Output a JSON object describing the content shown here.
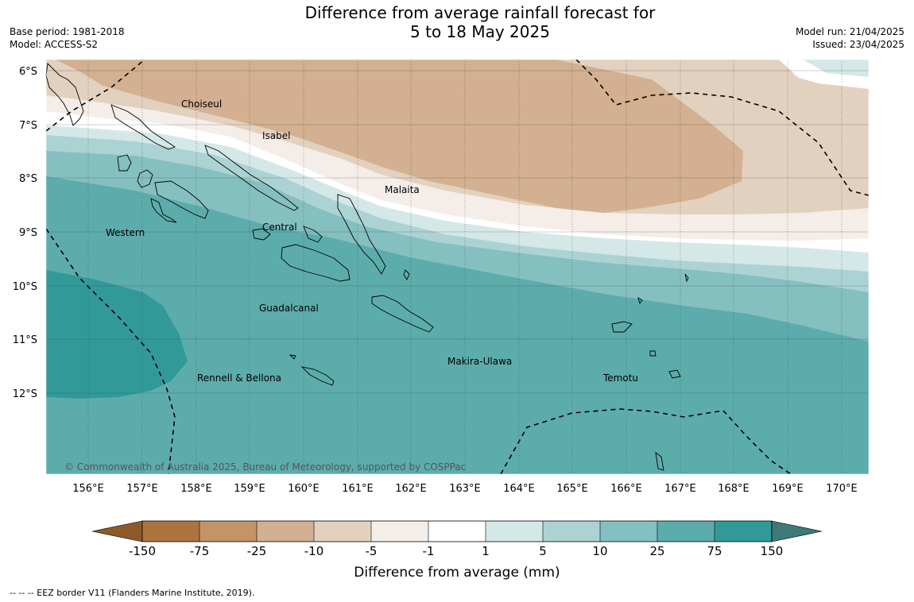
{
  "title_line1": "Difference from average rainfall forecast for",
  "title_line2": "5 to 18 May 2025",
  "base_period": "Base period: 1981-2018",
  "model": "Model: ACCESS-S2",
  "model_run": "Model run: 21/04/2025",
  "issued": "Issued: 23/04/2025",
  "lat_labels": [
    "6°S",
    "7°S",
    "8°S",
    "9°S",
    "10°S",
    "11°S",
    "12°S"
  ],
  "lon_labels": [
    "156°E",
    "157°E",
    "158°E",
    "159°E",
    "160°E",
    "161°E",
    "162°E",
    "163°E",
    "164°E",
    "165°E",
    "166°E",
    "167°E",
    "168°E",
    "169°E",
    "170°E"
  ],
  "places": [
    "Choiseul",
    "Isabel",
    "Malaita",
    "Western",
    "Central",
    "Guadalcanal",
    "Makira-Ulawa",
    "Rennell & Bellona",
    "Temotu"
  ],
  "copyright": "© Commonwealth of Australia 2025, Bureau of Meteorology, supported by COSPPac",
  "colorbar": {
    "title": "Difference from average (mm)",
    "tick_labels": [
      "-150",
      "-75",
      "-25",
      "-10",
      "-5",
      "-1",
      "1",
      "5",
      "10",
      "25",
      "75",
      "150"
    ],
    "colors": {
      "under": "#8f5a2a",
      "bins": [
        "#ad7440",
        "#c39468",
        "#d2b091",
        "#e3d1c0",
        "#f5ede8",
        "#ffffff",
        "#d4e8e8",
        "#acd3d3",
        "#84c0bf",
        "#5dacac",
        "#319a99"
      ],
      "over": "#3b7a78"
    }
  },
  "footer": "--  --  -- EEZ border V11 (Flanders Marine Institute, 2019)."
}
